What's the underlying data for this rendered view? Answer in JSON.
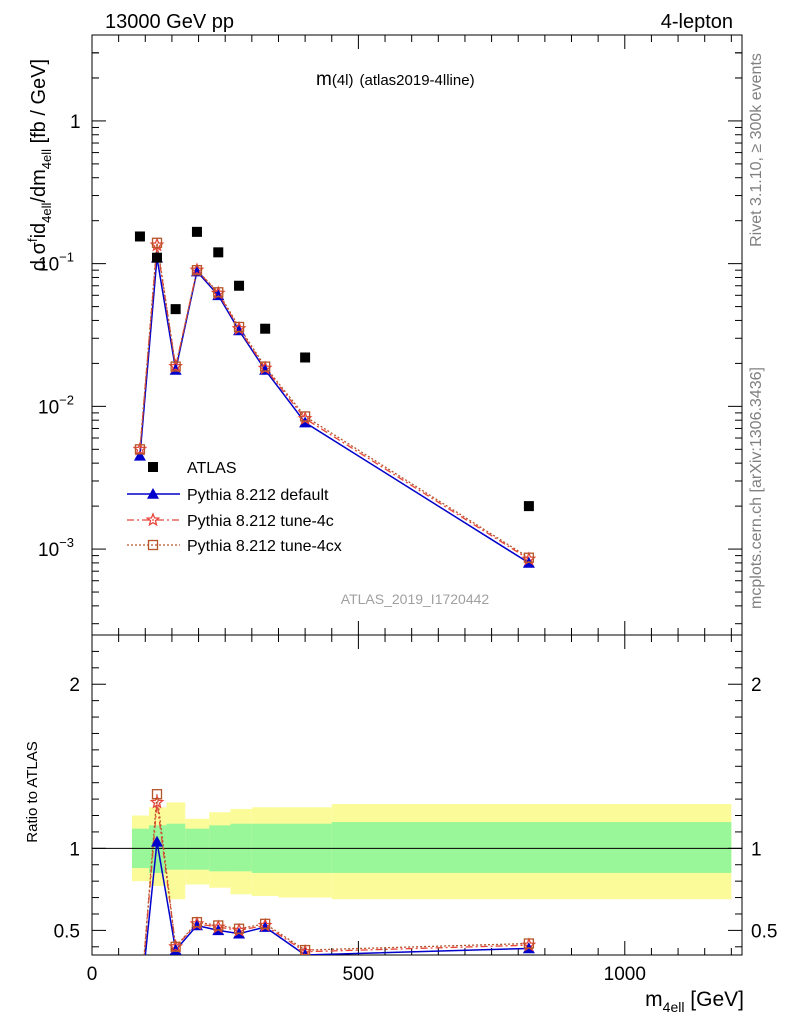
{
  "header": {
    "left": "13000 GeV pp",
    "right": "4-lepton"
  },
  "side_text": {
    "rivet": "Rivet 3.1.10, ≥ 300k events",
    "mcplots": "mcplots.cern.ch [arXiv:1306.3436]"
  },
  "plot_title": {
    "main": "m",
    "paren": "(4l)",
    "tag": "(atlas2019-4lline)"
  },
  "analysis_id": "ATLAS_2019_I1720442",
  "main_ylabel": {
    "a": "d σ",
    "a_sup": "f",
    "b": "id",
    "b_sub": "4ell",
    "c": "/dm",
    "c_sub": "4ell",
    "d": " [fb / GeV]"
  },
  "ratio_ylabel": "Ratio to ATLAS",
  "xlabel": {
    "main": "m",
    "sub": "4ell",
    "unit": " [GeV]"
  },
  "colors": {
    "data": "#000000",
    "default": "#0000cc",
    "tune4c": "#e8443a",
    "tune4cx": "#b5562a",
    "band_inner": "#99f799",
    "band_outer": "#fbfb99"
  },
  "chart_data": [
    {
      "type": "scatter",
      "scale": "log",
      "xlim": [
        0,
        1220
      ],
      "ylim": [
        0.00025,
        4
      ],
      "yticks": [
        {
          "v": 1,
          "base": "1",
          "exp": ""
        },
        {
          "v": 0.1,
          "base": "10",
          "exp": "−1"
        },
        {
          "v": 0.01,
          "base": "10",
          "exp": "−2"
        },
        {
          "v": 0.001,
          "base": "10",
          "exp": "−3"
        }
      ],
      "legend": [
        "ATLAS",
        "Pythia 8.212 default",
        "Pythia 8.212 tune-4c",
        "Pythia 8.212 tune-4cx"
      ],
      "series": [
        {
          "name": "ATLAS",
          "x": [
            90,
            122,
            157,
            197,
            237,
            276,
            325,
            400,
            820
          ],
          "y": [
            0.155,
            0.11,
            0.048,
            0.167,
            0.12,
            0.07,
            0.035,
            0.022,
            0.002
          ]
        },
        {
          "name": "Pythia 8.212 default",
          "x": [
            90,
            122,
            157,
            197,
            237,
            276,
            325,
            400,
            820
          ],
          "y": [
            0.0045,
            0.11,
            0.018,
            0.088,
            0.06,
            0.034,
            0.018,
            0.0077,
            0.0008
          ]
        },
        {
          "name": "Pythia 8.212 tune-4c",
          "x": [
            90,
            122,
            157,
            197,
            237,
            276,
            325,
            400,
            820
          ],
          "y": [
            0.005,
            0.135,
            0.019,
            0.09,
            0.062,
            0.035,
            0.0185,
            0.0082,
            0.00085
          ]
        },
        {
          "name": "Pythia 8.212 tune-4cx",
          "x": [
            90,
            122,
            157,
            197,
            237,
            276,
            325,
            400,
            820
          ],
          "y": [
            0.005,
            0.14,
            0.019,
            0.09,
            0.063,
            0.036,
            0.019,
            0.0085,
            0.00087
          ]
        }
      ]
    },
    {
      "type": "line",
      "xlim": [
        0,
        1220
      ],
      "ylim": [
        0.35,
        2.3
      ],
      "xticks": [
        "0",
        "500",
        "1000"
      ],
      "xtick_values": [
        0,
        500,
        1000
      ],
      "yticks": [
        "0.5",
        "1",
        "2"
      ],
      "ytick_values": [
        0.5,
        1,
        2
      ],
      "band_edges": [
        75,
        107,
        140,
        175,
        220,
        260,
        300,
        350,
        450,
        1200
      ],
      "band_inner": [
        [
          0.88,
          1.12
        ],
        [
          0.85,
          1.14
        ],
        [
          0.87,
          1.15
        ],
        [
          0.87,
          1.12
        ],
        [
          0.86,
          1.14
        ],
        [
          0.86,
          1.15
        ],
        [
          0.85,
          1.15
        ],
        [
          0.85,
          1.15
        ],
        [
          0.85,
          1.16
        ]
      ],
      "band_outer": [
        [
          0.8,
          1.2
        ],
        [
          0.77,
          1.25
        ],
        [
          0.69,
          1.28
        ],
        [
          0.78,
          1.18
        ],
        [
          0.76,
          1.22
        ],
        [
          0.72,
          1.24
        ],
        [
          0.71,
          1.25
        ],
        [
          0.7,
          1.25
        ],
        [
          0.69,
          1.27
        ]
      ],
      "series": [
        {
          "name": "Pythia 8.212 default",
          "x": [
            90,
            122,
            157,
            197,
            237,
            276,
            325,
            400,
            820
          ],
          "y": [
            0.029,
            1.04,
            0.38,
            0.53,
            0.5,
            0.48,
            0.52,
            0.35,
            0.39
          ]
        },
        {
          "name": "Pythia 8.212 tune-4c",
          "x": [
            90,
            122,
            157,
            197,
            237,
            276,
            325,
            400,
            820
          ],
          "y": [
            0.032,
            1.28,
            0.4,
            0.54,
            0.52,
            0.5,
            0.53,
            0.37,
            0.41
          ]
        },
        {
          "name": "Pythia 8.212 tune-4cx",
          "x": [
            90,
            122,
            157,
            197,
            237,
            276,
            325,
            400,
            820
          ],
          "y": [
            0.032,
            1.33,
            0.4,
            0.55,
            0.53,
            0.51,
            0.54,
            0.38,
            0.42
          ]
        }
      ]
    }
  ]
}
